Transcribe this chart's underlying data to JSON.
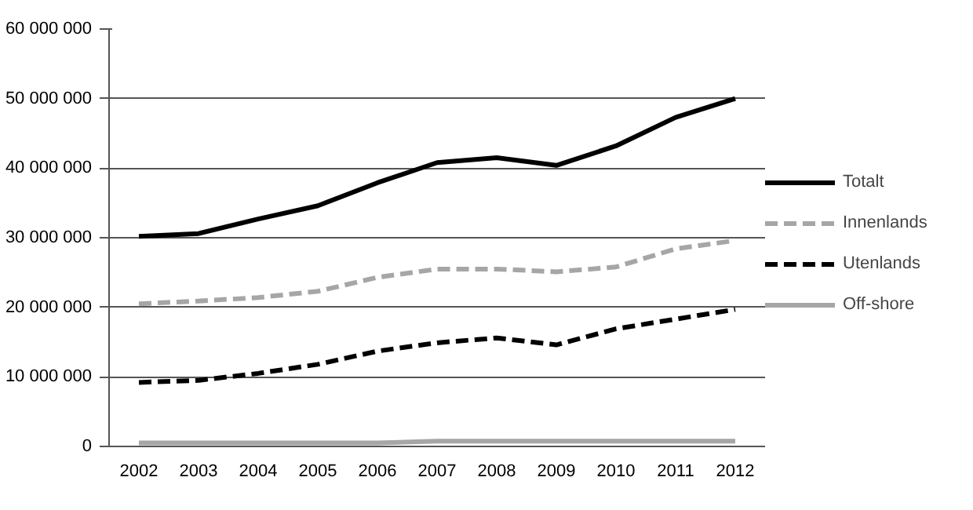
{
  "chart_data": {
    "type": "line",
    "categories": [
      "2002",
      "2003",
      "2004",
      "2005",
      "2006",
      "2007",
      "2008",
      "2009",
      "2010",
      "2011",
      "2012"
    ],
    "ylim": [
      0,
      60000000
    ],
    "yticks": [
      {
        "value": 0,
        "label": "0"
      },
      {
        "value": 10000000,
        "label": "10 000 000"
      },
      {
        "value": 20000000,
        "label": "20 000 000"
      },
      {
        "value": 30000000,
        "label": "30 000 000"
      },
      {
        "value": 40000000,
        "label": "40 000 000"
      },
      {
        "value": 50000000,
        "label": "50 000 000"
      },
      {
        "value": 60000000,
        "label": "60 000 000"
      }
    ],
    "grid": "y",
    "legend": "right",
    "series": [
      {
        "name": "Totalt",
        "color": "#000000",
        "line_style": "solid",
        "values": [
          30200000,
          30600000,
          32700000,
          34600000,
          37900000,
          40800000,
          41500000,
          40400000,
          43200000,
          47300000,
          50000000
        ]
      },
      {
        "name": "Innenlands",
        "color": "#a6a6a6",
        "line_style": "dashed",
        "values": [
          20500000,
          20900000,
          21400000,
          22300000,
          24300000,
          25500000,
          25500000,
          25100000,
          25800000,
          28400000,
          29600000
        ]
      },
      {
        "name": "Utenlands",
        "color": "#000000",
        "line_style": "dashed",
        "values": [
          9200000,
          9500000,
          10500000,
          11800000,
          13700000,
          14900000,
          15600000,
          14600000,
          16900000,
          18300000,
          19700000
        ]
      },
      {
        "name": "Off-shore",
        "color": "#a6a6a6",
        "line_style": "solid",
        "values": [
          500000,
          500000,
          500000,
          500000,
          500000,
          750000,
          750000,
          750000,
          750000,
          750000,
          750000
        ]
      }
    ]
  }
}
